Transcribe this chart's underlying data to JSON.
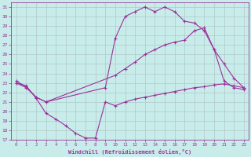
{
  "background_color": "#c8ecea",
  "grid_color": "#b0c8c8",
  "line_color": "#993399",
  "xlabel": "Windchill (Refroidissement éolien,°C)",
  "xlim": [
    -0.5,
    23.5
  ],
  "ylim": [
    17,
    31.5
  ],
  "yticks": [
    17,
    18,
    19,
    20,
    21,
    22,
    23,
    24,
    25,
    26,
    27,
    28,
    29,
    30,
    31
  ],
  "xticks": [
    0,
    1,
    2,
    3,
    4,
    5,
    6,
    7,
    8,
    9,
    10,
    11,
    12,
    13,
    14,
    15,
    16,
    17,
    18,
    19,
    20,
    21,
    22,
    23
  ],
  "curve_bottom_x": [
    0,
    1,
    2,
    3,
    4,
    5,
    6,
    7,
    8,
    9,
    10,
    11,
    12,
    13,
    14,
    15,
    16,
    17,
    18,
    19,
    20,
    21,
    22,
    23
  ],
  "curve_bottom_y": [
    23.0,
    22.7,
    21.4,
    19.8,
    19.2,
    18.5,
    17.7,
    17.2,
    17.2,
    21.0,
    20.6,
    21.0,
    21.3,
    21.5,
    21.7,
    21.9,
    22.1,
    22.3,
    22.5,
    22.6,
    22.8,
    22.9,
    22.7,
    22.5
  ],
  "curve_top_x": [
    0,
    1,
    2,
    3,
    9,
    10,
    11,
    12,
    13,
    14,
    15,
    16,
    17,
    18,
    19,
    20,
    21,
    22,
    23
  ],
  "curve_top_y": [
    23.2,
    22.6,
    21.5,
    21.0,
    22.5,
    27.7,
    30.0,
    30.5,
    31.0,
    30.5,
    31.0,
    30.5,
    29.5,
    29.3,
    28.5,
    26.5,
    23.2,
    22.5,
    22.3
  ],
  "curve_mid_x": [
    0,
    1,
    2,
    3,
    10,
    11,
    12,
    13,
    14,
    15,
    16,
    17,
    18,
    19,
    20,
    21,
    22,
    23
  ],
  "curve_mid_y": [
    23.0,
    22.5,
    21.5,
    21.0,
    23.8,
    24.5,
    25.2,
    26.0,
    26.5,
    27.0,
    27.3,
    27.5,
    28.5,
    28.8,
    26.5,
    25.0,
    23.5,
    22.5
  ]
}
